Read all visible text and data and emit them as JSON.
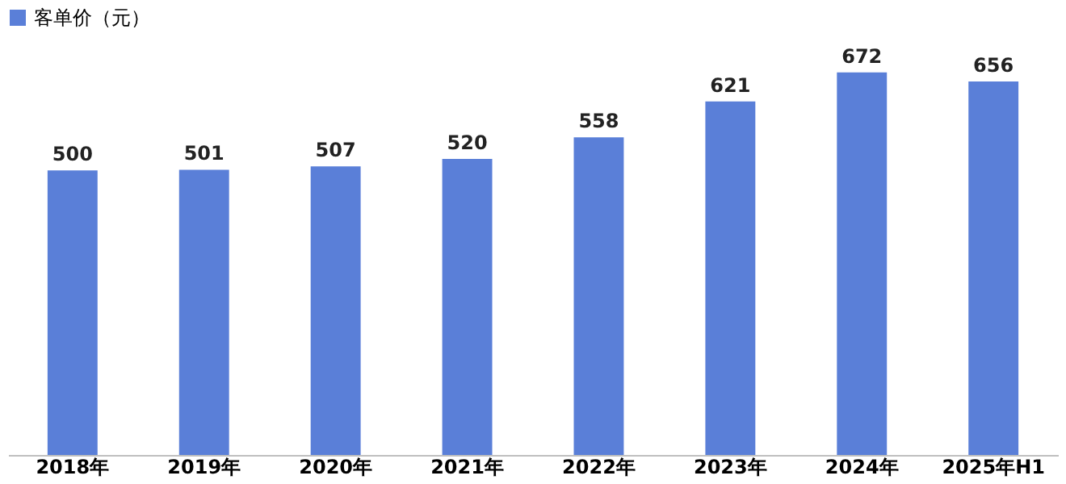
{
  "chart_data": {
    "type": "bar",
    "categories": [
      "2018年",
      "2019年",
      "2020年",
      "2021年",
      "2022年",
      "2023年",
      "2024年",
      "2025年H1"
    ],
    "series": [
      {
        "name": "客单价（元）",
        "color": "#5a7fd8",
        "values": [
          500,
          501,
          507,
          520,
          558,
          621,
          672,
          656
        ]
      }
    ],
    "data_labels": true,
    "legend": "top",
    "grid": false,
    "tick_labels": "x"
  }
}
